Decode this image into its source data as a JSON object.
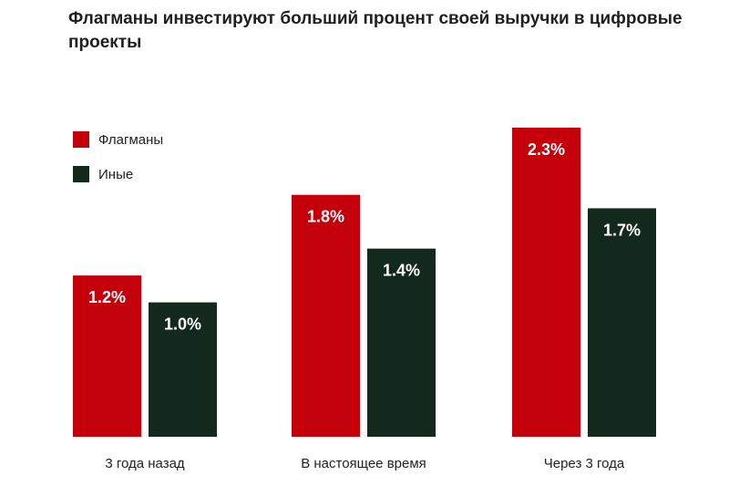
{
  "chart_data": {
    "type": "bar",
    "title": "Флагманы инвестируют больший процент своей выручки в цифровые проекты",
    "categories": [
      "3 года назад",
      "В настоящее время",
      "Через 3 года"
    ],
    "series": [
      {
        "name": "Флагманы",
        "color": "#c4000b",
        "values": [
          1.2,
          1.8,
          2.3
        ],
        "labels": [
          "1.2%",
          "1.8%",
          "2.3%"
        ]
      },
      {
        "name": "Иные",
        "color": "#13291d",
        "values": [
          1.0,
          1.4,
          1.7
        ],
        "labels": [
          "1.0%",
          "1.4%",
          "1.7%"
        ]
      }
    ],
    "ylim": [
      0,
      2.3
    ],
    "grid": false,
    "legend_position": "top-left"
  }
}
